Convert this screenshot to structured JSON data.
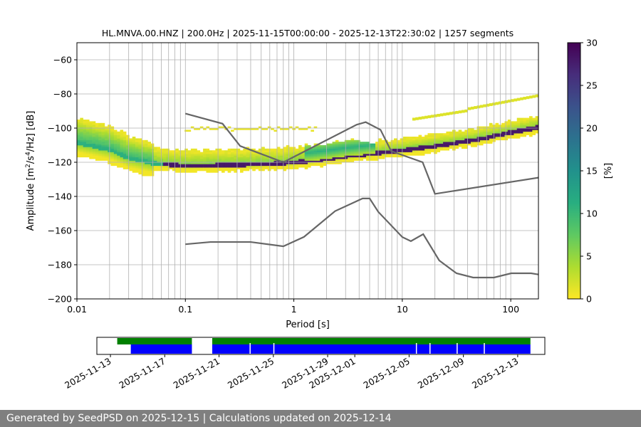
{
  "chart_data": {
    "type": "heatmap",
    "title": "HL.MNVA.00.HNZ | 200.0Hz | 2025-11-15T00:00:00 - 2025-12-13T22:30:02 | 1257 segments",
    "xlabel": "Period [s]",
    "ylabel_main": "Amplitude [m",
    "ylabel_sup1": "2",
    "ylabel_mid": "/s",
    "ylabel_sup2": "4",
    "ylabel_end": "/Hz] [dB]",
    "x_scale": "log",
    "xlim": [
      0.01,
      180
    ],
    "ylim": [
      -200,
      -50
    ],
    "x_tick_labels": [
      "0.01",
      "0.1",
      "1",
      "10",
      "100"
    ],
    "y_ticks": [
      -60,
      -80,
      -100,
      -120,
      -140,
      -160,
      -180,
      -200
    ],
    "y_tick_labels": [
      "−60",
      "−80",
      "−100",
      "−120",
      "−140",
      "−160",
      "−180",
      "−200"
    ],
    "grid": true,
    "colorbar": {
      "label": "[%]",
      "range": [
        0,
        30
      ],
      "ticks": [
        0,
        5,
        10,
        15,
        20,
        25,
        30
      ],
      "tick_labels": [
        "0",
        "5",
        "10",
        "15",
        "20",
        "25",
        "30"
      ],
      "colormap": "viridis_r"
    },
    "model_curves": [
      {
        "points": [
          [
            0.1,
            -91.5
          ],
          [
            0.22,
            -97.4
          ],
          [
            0.32,
            -110.5
          ],
          [
            0.8,
            -120.0
          ],
          [
            3.8,
            -98.0
          ],
          [
            4.6,
            -96.5
          ],
          [
            6.3,
            -101.0
          ],
          [
            7.9,
            -113.5
          ],
          [
            15.4,
            -120.0
          ],
          [
            20.0,
            -138.5
          ],
          [
            180,
            -129.0
          ]
        ]
      },
      {
        "points": [
          [
            0.1,
            -168.0
          ],
          [
            0.17,
            -166.7
          ],
          [
            0.4,
            -166.7
          ],
          [
            0.8,
            -169.2
          ],
          [
            1.24,
            -163.7
          ],
          [
            2.4,
            -148.6
          ],
          [
            4.3,
            -141.2
          ],
          [
            5.0,
            -141.2
          ],
          [
            6.0,
            -149.0
          ],
          [
            10.0,
            -163.8
          ],
          [
            12.0,
            -166.2
          ],
          [
            15.6,
            -162.1
          ],
          [
            21.9,
            -177.5
          ],
          [
            31.6,
            -185.0
          ],
          [
            45.0,
            -187.5
          ],
          [
            70.0,
            -187.5
          ],
          [
            101.0,
            -185.0
          ],
          [
            154.0,
            -185.0
          ],
          [
            180,
            -185.7
          ]
        ]
      }
    ],
    "mode_curve": [
      [
        0.01,
        -109
      ],
      [
        0.02,
        -113
      ],
      [
        0.03,
        -118
      ],
      [
        0.05,
        -121
      ],
      [
        0.1,
        -122.5
      ],
      [
        0.3,
        -122
      ],
      [
        0.8,
        -121
      ],
      [
        1.5,
        -119.5
      ],
      [
        3,
        -117
      ],
      [
        5,
        -115.5
      ],
      [
        10,
        -113.5
      ],
      [
        20,
        -111
      ],
      [
        50,
        -107
      ],
      [
        100,
        -103
      ],
      [
        180,
        -100
      ]
    ],
    "time_axis": {
      "date_labels": [
        "2025-11-13",
        "2025-11-17",
        "2025-11-21",
        "2025-11-25",
        "2025-11-29",
        "2025-12-01",
        "2025-12-05",
        "2025-12-09",
        "2025-12-13"
      ],
      "range": [
        "2025-11-12",
        "2025-12-15"
      ],
      "green_bars": [
        [
          "2025-11-13T12:00",
          "2025-11-19T00:00"
        ],
        [
          "2025-11-20T12:00",
          "2025-12-13T22:30"
        ]
      ],
      "blue_bars": [
        [
          "2025-11-14T12:00",
          "2025-11-19T00:00"
        ],
        [
          "2025-11-20T12:00",
          "2025-12-13T22:30"
        ]
      ],
      "green_color": "#008000",
      "blue_color": "#0000ff"
    },
    "colors": {
      "model_line": "#666666",
      "grid": "#b0b0b0"
    }
  },
  "footer": {
    "text": "Generated by SeedPSD on 2025-12-15 | Calculations updated on 2025-12-14"
  }
}
